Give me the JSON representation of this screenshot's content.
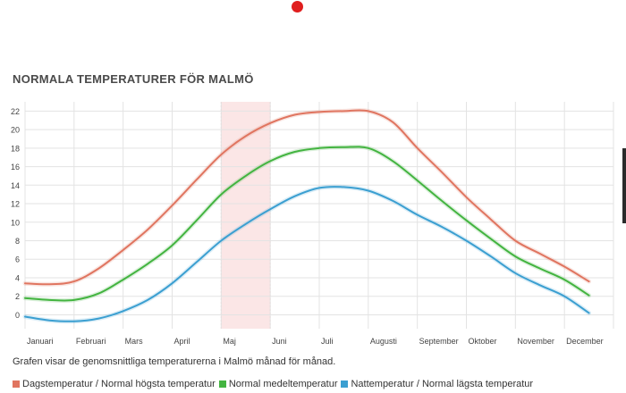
{
  "title": "NORMALA TEMPERATURER FÖR MALMÖ",
  "caption": "Grafen visar de genomsnittliga temperaturerna i Malmö månad för månad.",
  "colors": {
    "highlight_fill": "#fbe6e6",
    "grid": "#e3e3e3",
    "dot": "#e01e1e"
  },
  "chart_data": {
    "type": "line",
    "title": "NORMALA TEMPERATURER FÖR MALMÖ",
    "xlabel": "",
    "ylabel": "",
    "categories": [
      "Januari",
      "Februari",
      "Mars",
      "April",
      "Maj",
      "Juni",
      "Juli",
      "Augusti",
      "September",
      "Oktober",
      "November",
      "December"
    ],
    "y_ticks": [
      0,
      2,
      4,
      6,
      8,
      10,
      12,
      14,
      16,
      18,
      20,
      22
    ],
    "ylim": [
      -1.5,
      23
    ],
    "grid": true,
    "highlight_month": "Maj",
    "legend_position": "bottom",
    "series": [
      {
        "name": "Dagstemperatur / Normal högsta temperatur",
        "color": "#e07560",
        "x": [
          0,
          0.5,
          1,
          1.5,
          2,
          2.5,
          3,
          3.5,
          4,
          4.5,
          5,
          5.5,
          6,
          6.5,
          7,
          7.5,
          8,
          8.5,
          9,
          9.5,
          10,
          10.5,
          11,
          11.5
        ],
        "values": [
          3.4,
          3.3,
          3.6,
          5.0,
          7.0,
          9.2,
          11.8,
          14.6,
          17.3,
          19.3,
          20.7,
          21.6,
          21.9,
          22.0,
          22.0,
          20.8,
          18.0,
          15.4,
          12.7,
          10.3,
          8.0,
          6.6,
          5.2,
          3.6
        ]
      },
      {
        "name": "Normal medeltemperatur",
        "color": "#43b440",
        "x": [
          0,
          0.5,
          1,
          1.5,
          2,
          2.5,
          3,
          3.5,
          4,
          4.5,
          5,
          5.5,
          6,
          6.5,
          7,
          7.5,
          8,
          8.5,
          9,
          9.5,
          10,
          10.5,
          11,
          11.5
        ],
        "values": [
          1.8,
          1.6,
          1.6,
          2.3,
          3.8,
          5.5,
          7.5,
          10.2,
          13.0,
          15.0,
          16.6,
          17.6,
          18.0,
          18.1,
          18.0,
          16.6,
          14.5,
          12.3,
          10.2,
          8.2,
          6.3,
          5.0,
          3.8,
          2.1
        ]
      },
      {
        "name": "Nattemperatur / Normal lägsta temperatur",
        "color": "#3b9fd1",
        "x": [
          0,
          0.5,
          1,
          1.5,
          2,
          2.5,
          3,
          3.5,
          4,
          4.5,
          5,
          5.5,
          6,
          6.5,
          7,
          7.5,
          8,
          8.5,
          9,
          9.5,
          10,
          10.5,
          11,
          11.5
        ],
        "values": [
          -0.2,
          -0.6,
          -0.7,
          -0.4,
          0.4,
          1.6,
          3.4,
          5.7,
          8.0,
          9.8,
          11.4,
          12.8,
          13.7,
          13.8,
          13.4,
          12.3,
          10.8,
          9.5,
          8.0,
          6.3,
          4.5,
          3.2,
          2.0,
          0.2
        ]
      }
    ]
  }
}
